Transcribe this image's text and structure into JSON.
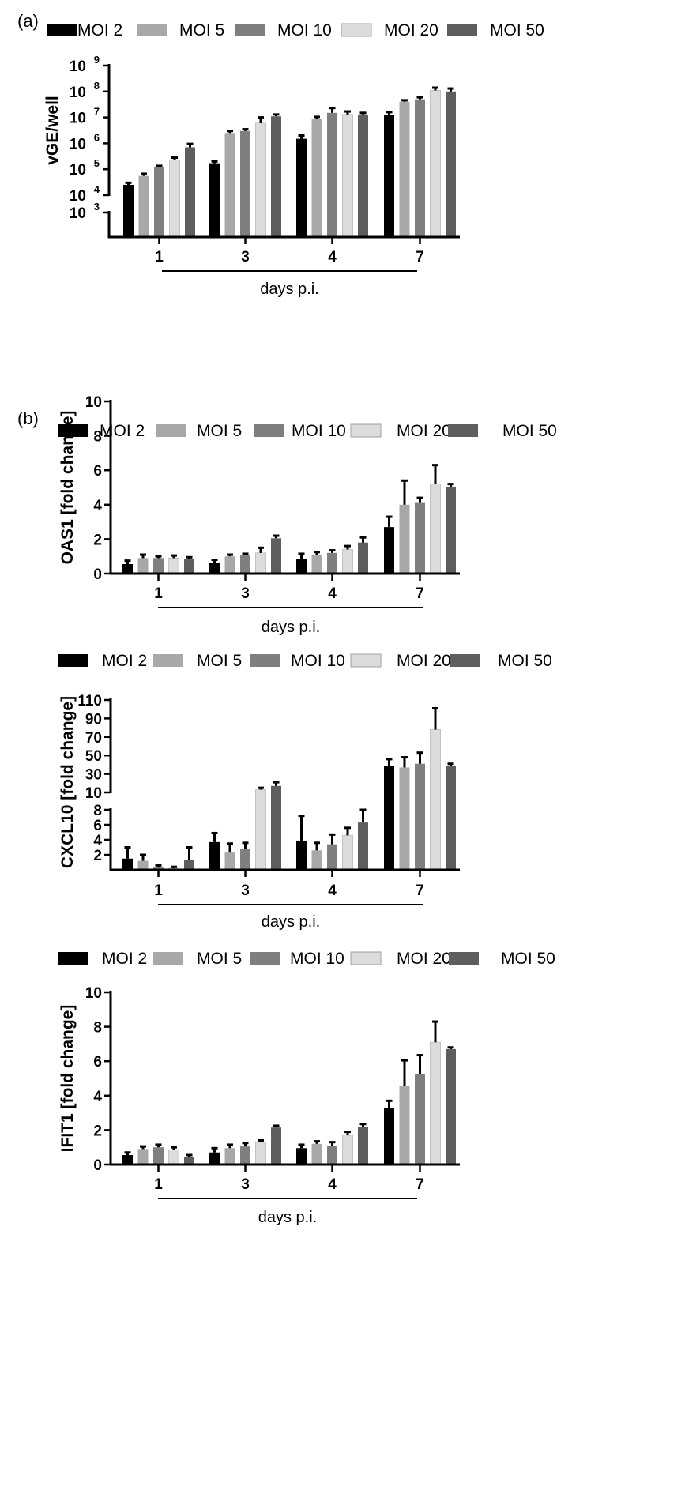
{
  "panels": {
    "a": "(a)",
    "b": "(b)"
  },
  "series_colors": [
    "#000000",
    "#a8a8a8",
    "#7f7f7f",
    "#dcdcdc",
    "#5e5e5e"
  ],
  "chart_data": [
    {
      "id": "vge",
      "type": "bar",
      "scale": "log-broken",
      "title": "",
      "ylabel": "vGE/well",
      "xlabel": "days p.i.",
      "categories": [
        "1",
        "3",
        "4",
        "7"
      ],
      "legend": [
        "MOI 2",
        "MOI 5",
        "MOI 10",
        "MOI 20",
        "MOI 50"
      ],
      "ylim": [
        1000,
        1000000000
      ],
      "y_break": [
        1000,
        10000
      ],
      "y_ticks": [
        {
          "base": "10",
          "exp": "3",
          "value": 1000
        },
        {
          "base": "10",
          "exp": "4",
          "value": 10000
        },
        {
          "base": "10",
          "exp": "5",
          "value": 100000
        },
        {
          "base": "10",
          "exp": "6",
          "value": 1000000
        },
        {
          "base": "10",
          "exp": "7",
          "value": 10000000
        },
        {
          "base": "10",
          "exp": "8",
          "value": 100000000
        },
        {
          "base": "10",
          "exp": "9",
          "value": 1000000000
        }
      ],
      "series": [
        {
          "name": "MOI 2",
          "values": [
            25000,
            170000,
            1500000,
            12000000
          ],
          "errors": [
            5000,
            30000,
            500000,
            4000000
          ]
        },
        {
          "name": "MOI 5",
          "values": [
            55000,
            2500000,
            9000000,
            40000000
          ],
          "errors": [
            12000,
            500000,
            1500000,
            6000000
          ]
        },
        {
          "name": "MOI 10",
          "values": [
            120000,
            3000000,
            15000000,
            50000000
          ],
          "errors": [
            15000,
            500000,
            8000000,
            10000000
          ]
        },
        {
          "name": "MOI 20",
          "values": [
            230000,
            6000000,
            13000000,
            110000000
          ],
          "errors": [
            50000,
            4000000,
            4000000,
            30000000
          ]
        },
        {
          "name": "MOI 50",
          "values": [
            700000,
            11000000,
            13000000,
            100000000
          ],
          "errors": [
            250000,
            2000000,
            2000000,
            30000000
          ]
        }
      ]
    },
    {
      "id": "oas1",
      "type": "bar",
      "scale": "linear",
      "title": "",
      "ylabel": "OAS1 [fold change]",
      "xlabel": "days p.i.",
      "categories": [
        "1",
        "3",
        "4",
        "7"
      ],
      "legend": [
        "MOI 2",
        "MOI 5",
        "MOI 10",
        "MOI 20",
        "MOI 50"
      ],
      "ylim": [
        0,
        10
      ],
      "y_ticks": [
        "0",
        "2",
        "4",
        "6",
        "8",
        "10"
      ],
      "series": [
        {
          "name": "MOI 2",
          "values": [
            0.55,
            0.6,
            0.85,
            2.7
          ],
          "errors": [
            0.2,
            0.2,
            0.3,
            0.6
          ]
        },
        {
          "name": "MOI 5",
          "values": [
            0.9,
            1.0,
            1.1,
            4.0
          ],
          "errors": [
            0.2,
            0.1,
            0.15,
            1.4
          ]
        },
        {
          "name": "MOI 10",
          "values": [
            0.9,
            1.05,
            1.2,
            4.1
          ],
          "errors": [
            0.1,
            0.1,
            0.15,
            0.3
          ]
        },
        {
          "name": "MOI 20",
          "values": [
            0.9,
            1.2,
            1.4,
            5.2
          ],
          "errors": [
            0.15,
            0.3,
            0.2,
            1.1
          ]
        },
        {
          "name": "MOI 50",
          "values": [
            0.85,
            2.05,
            1.8,
            5.05
          ],
          "errors": [
            0.1,
            0.15,
            0.3,
            0.15
          ]
        }
      ]
    },
    {
      "id": "cxcl10",
      "type": "bar",
      "scale": "linear-broken",
      "title": "",
      "ylabel": "CXCL10 [fold change]",
      "xlabel": "days p.i.",
      "categories": [
        "1",
        "3",
        "4",
        "7"
      ],
      "legend": [
        "MOI 2",
        "MOI 5",
        "MOI 10",
        "MOI 20",
        "MOI 50"
      ],
      "ylim": [
        0,
        110
      ],
      "y_break": [
        8,
        10
      ],
      "y_ticks": [
        "2",
        "4",
        "6",
        "8",
        "10",
        "30",
        "50",
        "70",
        "90",
        "110"
      ],
      "series": [
        {
          "name": "MOI 2",
          "values": [
            1.5,
            3.7,
            3.9,
            39
          ],
          "errors": [
            1.5,
            1.2,
            3.3,
            7
          ]
        },
        {
          "name": "MOI 5",
          "values": [
            1.2,
            2.3,
            2.6,
            37
          ],
          "errors": [
            0.8,
            1.2,
            1.0,
            11
          ]
        },
        {
          "name": "MOI 10",
          "values": [
            0.3,
            2.8,
            3.4,
            41
          ],
          "errors": [
            0.3,
            0.8,
            1.3,
            12
          ]
        },
        {
          "name": "MOI 20",
          "values": [
            0.2,
            13,
            4.6,
            78
          ],
          "errors": [
            0.2,
            2,
            1.0,
            23
          ]
        },
        {
          "name": "MOI 50",
          "values": [
            1.3,
            17,
            6.3,
            39
          ],
          "errors": [
            1.7,
            4,
            1.8,
            2
          ]
        }
      ]
    },
    {
      "id": "ifit1",
      "type": "bar",
      "scale": "linear",
      "title": "",
      "ylabel": "IFIT1 [fold change]",
      "xlabel": "days p.i.",
      "categories": [
        "1",
        "3",
        "4",
        "7"
      ],
      "legend": [
        "MOI 2",
        "MOI 5",
        "MOI 10",
        "MOI 20",
        "MOI 50"
      ],
      "ylim": [
        0,
        10
      ],
      "y_ticks": [
        "0",
        "2",
        "4",
        "6",
        "8",
        "10"
      ],
      "series": [
        {
          "name": "MOI 2",
          "values": [
            0.55,
            0.7,
            0.95,
            3.3
          ],
          "errors": [
            0.15,
            0.25,
            0.2,
            0.4
          ]
        },
        {
          "name": "MOI 5",
          "values": [
            0.9,
            0.95,
            1.2,
            4.55
          ],
          "errors": [
            0.15,
            0.2,
            0.15,
            1.5
          ]
        },
        {
          "name": "MOI 10",
          "values": [
            1.0,
            1.05,
            1.1,
            5.25
          ],
          "errors": [
            0.15,
            0.2,
            0.2,
            1.1
          ]
        },
        {
          "name": "MOI 20",
          "values": [
            0.85,
            1.3,
            1.7,
            7.1
          ],
          "errors": [
            0.15,
            0.1,
            0.2,
            1.2
          ]
        },
        {
          "name": "MOI 50",
          "values": [
            0.45,
            2.15,
            2.2,
            6.7
          ],
          "errors": [
            0.1,
            0.1,
            0.15,
            0.1
          ]
        }
      ]
    }
  ]
}
